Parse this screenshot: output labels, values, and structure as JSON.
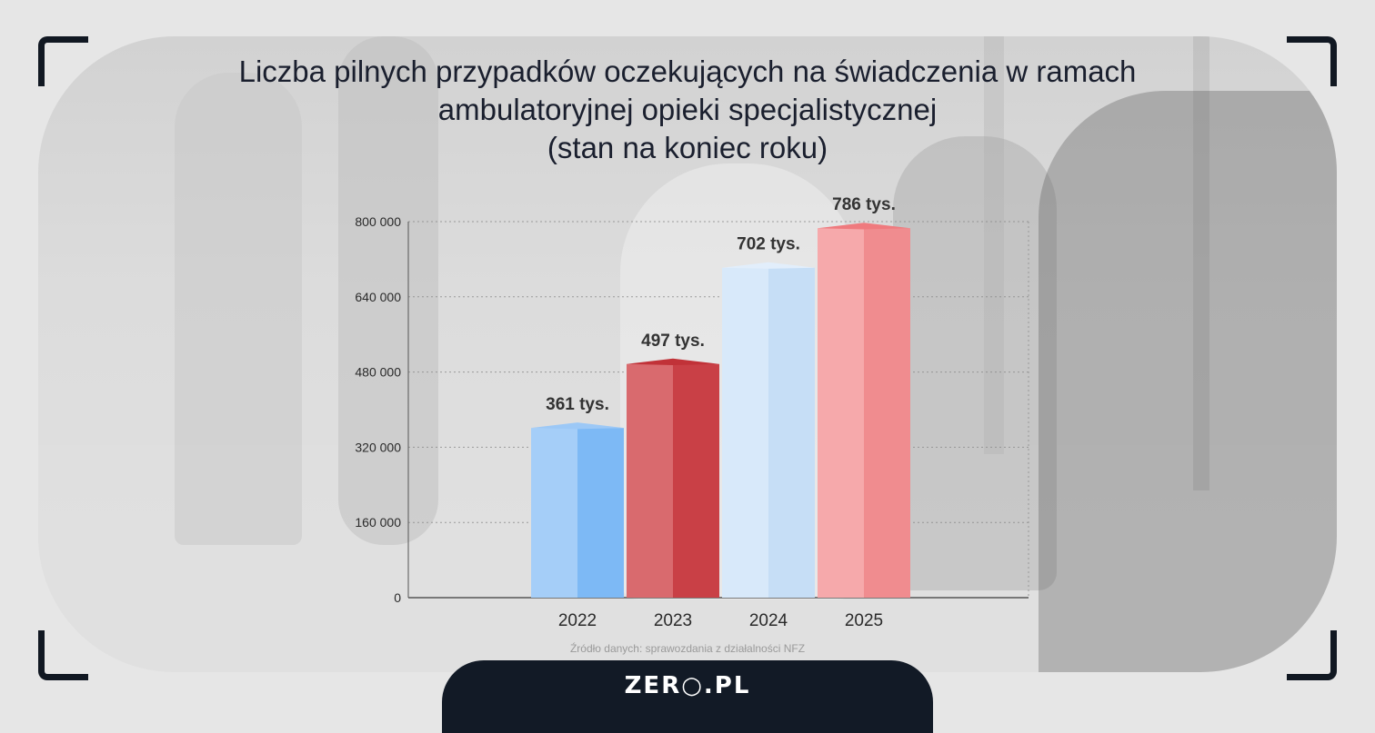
{
  "title_lines": [
    "Liczba pilnych przypadków oczekujących na świadczenia w ramach",
    "ambulatoryjnej opieki specjalistycznej",
    "(stan na koniec roku)"
  ],
  "chart_data": {
    "type": "bar",
    "categories": [
      "2022",
      "2023",
      "2024",
      "2025"
    ],
    "values": [
      361000,
      497000,
      702000,
      786000
    ],
    "data_labels": [
      "361 tys.",
      "497 tys.",
      "702 tys.",
      "786 tys."
    ],
    "ylim": [
      0,
      800000
    ],
    "yticks": [
      0,
      160000,
      320000,
      480000,
      640000,
      800000
    ],
    "ytick_labels": [
      "0",
      "160 000",
      "320 000",
      "480 000",
      "640 000",
      "800 000"
    ],
    "grid": true,
    "bar_colors": [
      {
        "front": "#7db9f5",
        "side": "#a5cef8",
        "top": "#9cc8f6"
      },
      {
        "front": "#c94046",
        "side": "#d96a6e",
        "top": "#c13238"
      },
      {
        "front": "#c6def6",
        "side": "#d8e9fa",
        "top": "#e2eefb"
      },
      {
        "front": "#f08c8f",
        "side": "#f6a9ab",
        "top": "#ef7a7e"
      }
    ]
  },
  "source": "Źródło danych: sprawozdania z działalności NFZ",
  "logo": "ZER○.PL"
}
